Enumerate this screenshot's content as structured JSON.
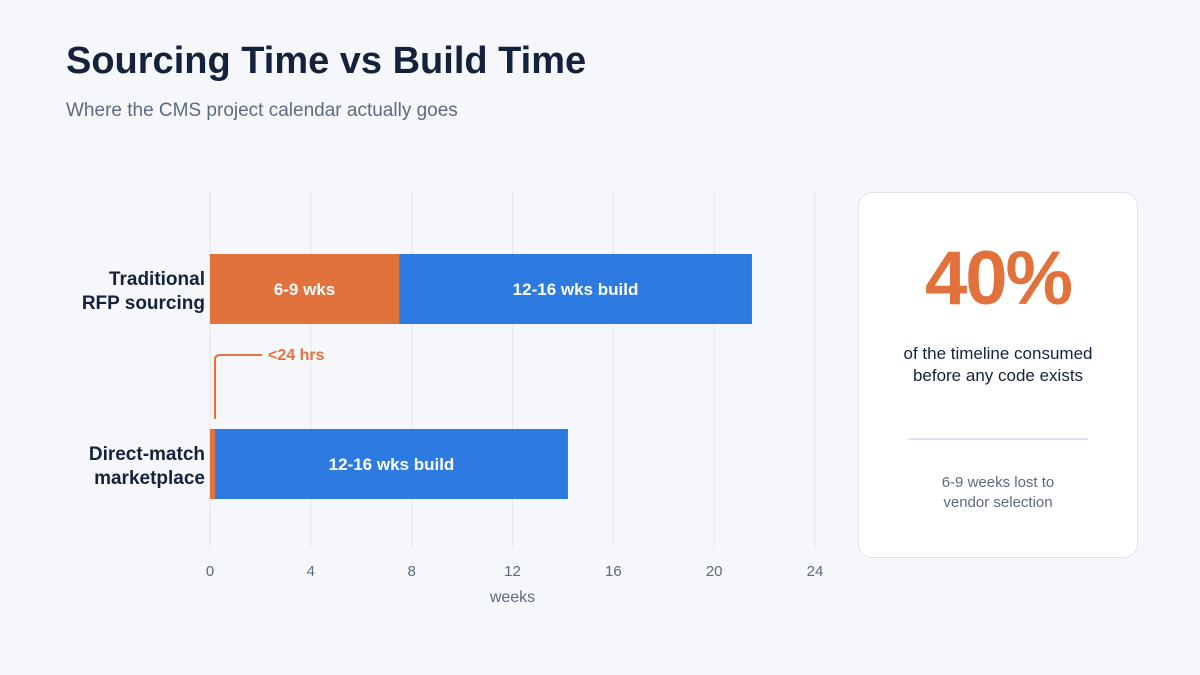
{
  "header": {
    "title": "Sourcing Time vs Build Time",
    "subtitle": "Where the CMS project calendar actually goes"
  },
  "colors": {
    "sourcing": "#e2723b",
    "build": "#2d7be0",
    "text_dark": "#14233b",
    "text_muted": "#5d6b7e",
    "grid": "#e3e6ec"
  },
  "chart_data": {
    "type": "bar",
    "orientation": "horizontal",
    "stacked": true,
    "categories": [
      "Traditional RFP sourcing",
      "Direct-match marketplace"
    ],
    "category_lines": [
      [
        "Traditional",
        "RFP sourcing"
      ],
      [
        "Direct-match",
        "marketplace"
      ]
    ],
    "series": [
      {
        "values": [
          7.5,
          0.2
        ],
        "color": "#e2723b",
        "labels": [
          "6-9 wks",
          ""
        ]
      },
      {
        "values": [
          14,
          14
        ],
        "color": "#2d7be0",
        "labels": [
          "12-16 wks build",
          "12-16 wks build"
        ]
      }
    ],
    "annotation": {
      "text": "<24 hrs",
      "category_index": 1
    },
    "xlabel": "weeks",
    "xlim": [
      0,
      24
    ],
    "xticks": [
      0,
      4,
      8,
      12,
      16,
      20,
      24
    ],
    "grid": true
  },
  "stat_card": {
    "value": "40%",
    "description": "of the timeline consumed before any code exists",
    "note": "6-9 weeks lost to vendor selection"
  }
}
